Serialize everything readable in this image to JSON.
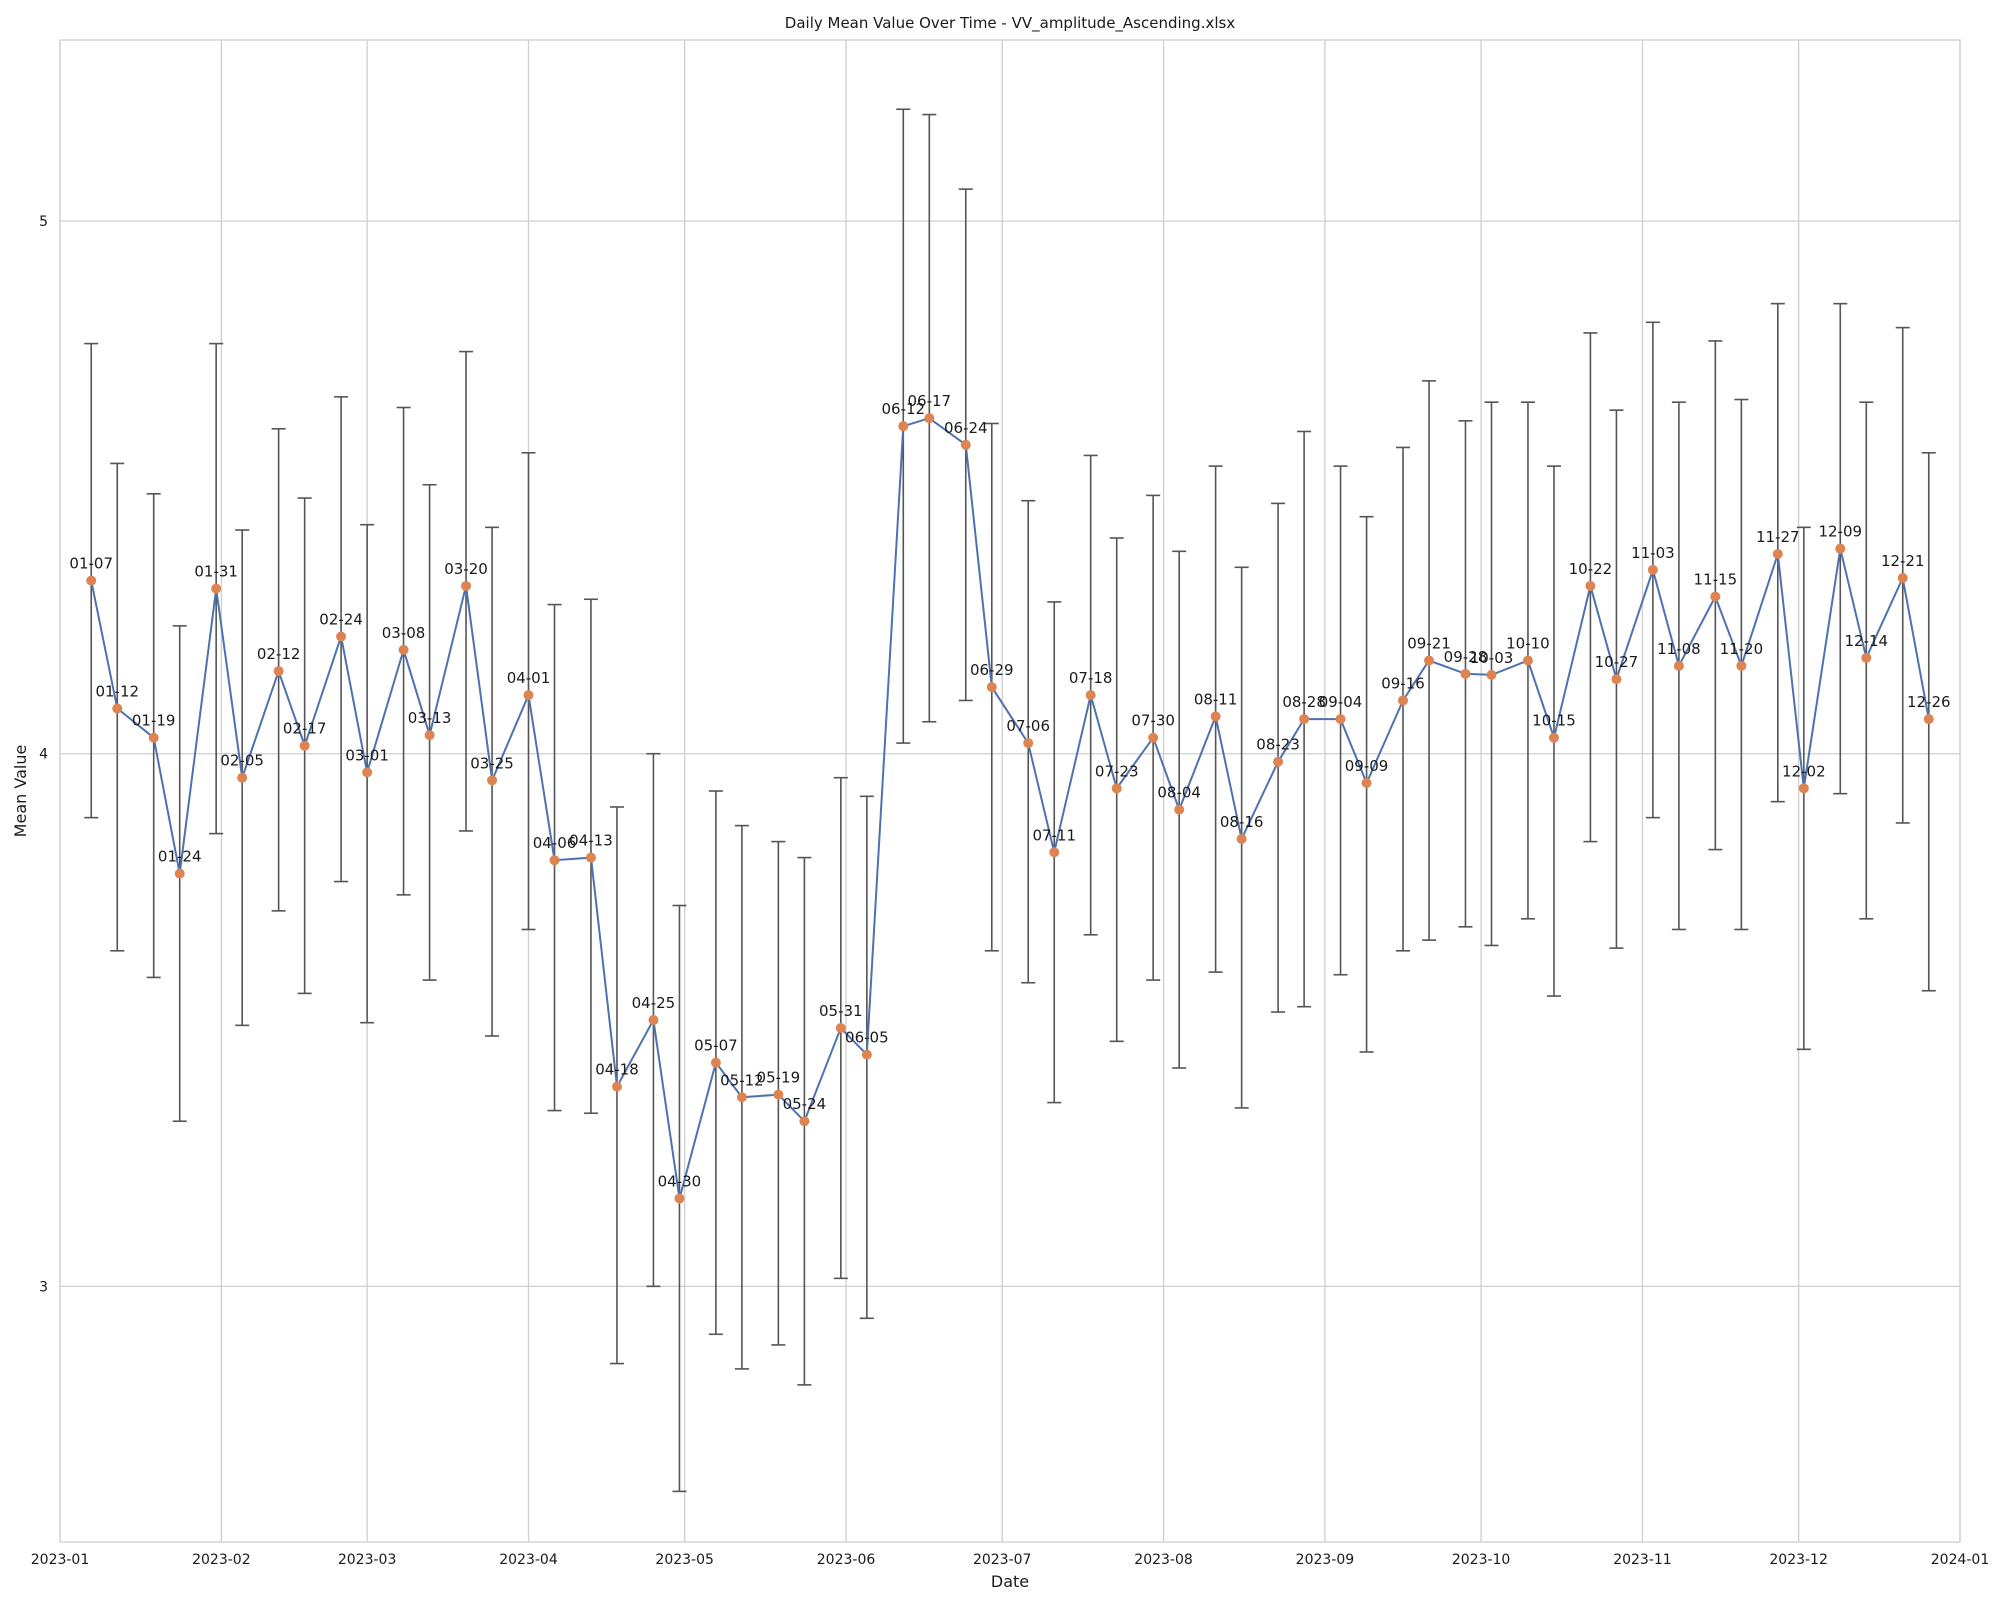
{
  "colors": {
    "line": "#4c72b0",
    "marker": "#dd8452",
    "errorbar": "#555555",
    "grid": "#cfcfcf"
  },
  "chart_data": {
    "type": "line",
    "title": "Daily Mean Value Over Time - VV_amplitude_Ascending.xlsx",
    "xlabel": "Date",
    "ylabel": "Mean Value",
    "xlim": [
      "2023-01-01",
      "2024-01-01"
    ],
    "ylim": [
      2.52,
      5.34
    ],
    "grid": true,
    "legend": "none",
    "x_ticks": [
      "2023-01",
      "2023-02",
      "2023-03",
      "2023-04",
      "2023-05",
      "2023-06",
      "2023-07",
      "2023-08",
      "2023-09",
      "2023-10",
      "2023-11",
      "2023-12",
      "2024-01"
    ],
    "y_ticks": [
      3,
      4,
      5
    ],
    "points": [
      {
        "date": "2023-01-07",
        "label": "01-07",
        "mean": 4.325,
        "err_low": 3.88,
        "err_high": 4.77
      },
      {
        "date": "2023-01-12",
        "label": "01-12",
        "mean": 4.085,
        "err_low": 3.63,
        "err_high": 4.545
      },
      {
        "date": "2023-01-19",
        "label": "01-19",
        "mean": 4.03,
        "err_low": 3.58,
        "err_high": 4.488
      },
      {
        "date": "2023-01-24",
        "label": "01-24",
        "mean": 3.775,
        "err_low": 3.31,
        "err_high": 4.24
      },
      {
        "date": "2023-01-31",
        "label": "01-31",
        "mean": 4.31,
        "err_low": 3.85,
        "err_high": 4.77
      },
      {
        "date": "2023-02-05",
        "label": "02-05",
        "mean": 3.955,
        "err_low": 3.49,
        "err_high": 4.42
      },
      {
        "date": "2023-02-12",
        "label": "02-12",
        "mean": 4.155,
        "err_low": 3.705,
        "err_high": 4.61
      },
      {
        "date": "2023-02-17",
        "label": "02-17",
        "mean": 4.015,
        "err_low": 3.55,
        "err_high": 4.48
      },
      {
        "date": "2023-02-24",
        "label": "02-24",
        "mean": 4.22,
        "err_low": 3.76,
        "err_high": 4.67
      },
      {
        "date": "2023-03-01",
        "label": "03-01",
        "mean": 3.965,
        "err_low": 3.495,
        "err_high": 4.43
      },
      {
        "date": "2023-03-08",
        "label": "03-08",
        "mean": 4.195,
        "err_low": 3.735,
        "err_high": 4.65
      },
      {
        "date": "2023-03-13",
        "label": "03-13",
        "mean": 4.035,
        "err_low": 3.575,
        "err_high": 4.505
      },
      {
        "date": "2023-03-20",
        "label": "03-20",
        "mean": 4.315,
        "err_low": 3.855,
        "err_high": 4.755
      },
      {
        "date": "2023-03-25",
        "label": "03-25",
        "mean": 3.95,
        "err_low": 3.47,
        "err_high": 4.425
      },
      {
        "date": "2023-04-01",
        "label": "04-01",
        "mean": 4.11,
        "err_low": 3.67,
        "err_high": 4.565
      },
      {
        "date": "2023-04-06",
        "label": "04-06",
        "mean": 3.8,
        "err_low": 3.33,
        "err_high": 4.28
      },
      {
        "date": "2023-04-13",
        "label": "04-13",
        "mean": 3.805,
        "err_low": 3.325,
        "err_high": 4.29
      },
      {
        "date": "2023-04-18",
        "label": "04-18",
        "mean": 3.375,
        "err_low": 2.855,
        "err_high": 3.9
      },
      {
        "date": "2023-04-25",
        "label": "04-25",
        "mean": 3.5,
        "err_low": 3.0,
        "err_high": 4.0
      },
      {
        "date": "2023-04-30",
        "label": "04-30",
        "mean": 3.165,
        "err_low": 2.615,
        "err_high": 3.715
      },
      {
        "date": "2023-05-07",
        "label": "05-07",
        "mean": 3.42,
        "err_low": 2.91,
        "err_high": 3.93
      },
      {
        "date": "2023-05-12",
        "label": "05-12",
        "mean": 3.355,
        "err_low": 2.845,
        "err_high": 3.865
      },
      {
        "date": "2023-05-19",
        "label": "05-19",
        "mean": 3.36,
        "err_low": 2.89,
        "err_high": 3.835
      },
      {
        "date": "2023-05-24",
        "label": "05-24",
        "mean": 3.31,
        "err_low": 2.815,
        "err_high": 3.805
      },
      {
        "date": "2023-05-31",
        "label": "05-31",
        "mean": 3.485,
        "err_low": 3.015,
        "err_high": 3.955
      },
      {
        "date": "2023-06-05",
        "label": "06-05",
        "mean": 3.435,
        "err_low": 2.94,
        "err_high": 3.92
      },
      {
        "date": "2023-06-12",
        "label": "06-12",
        "mean": 4.615,
        "err_low": 4.02,
        "err_high": 5.21
      },
      {
        "date": "2023-06-17",
        "label": "06-17",
        "mean": 4.63,
        "err_low": 4.06,
        "err_high": 5.2
      },
      {
        "date": "2023-06-24",
        "label": "06-24",
        "mean": 4.58,
        "err_low": 4.1,
        "err_high": 5.06
      },
      {
        "date": "2023-06-29",
        "label": "06-29",
        "mean": 4.125,
        "err_low": 3.63,
        "err_high": 4.62
      },
      {
        "date": "2023-07-06",
        "label": "07-06",
        "mean": 4.02,
        "err_low": 3.57,
        "err_high": 4.475
      },
      {
        "date": "2023-07-11",
        "label": "07-11",
        "mean": 3.815,
        "err_low": 3.345,
        "err_high": 4.285
      },
      {
        "date": "2023-07-18",
        "label": "07-18",
        "mean": 4.11,
        "err_low": 3.66,
        "err_high": 4.56
      },
      {
        "date": "2023-07-23",
        "label": "07-23",
        "mean": 3.935,
        "err_low": 3.46,
        "err_high": 4.405
      },
      {
        "date": "2023-07-30",
        "label": "07-30",
        "mean": 4.03,
        "err_low": 3.575,
        "err_high": 4.485
      },
      {
        "date": "2023-08-04",
        "label": "08-04",
        "mean": 3.895,
        "err_low": 3.41,
        "err_high": 4.38
      },
      {
        "date": "2023-08-11",
        "label": "08-11",
        "mean": 4.07,
        "err_low": 3.59,
        "err_high": 4.54
      },
      {
        "date": "2023-08-16",
        "label": "08-16",
        "mean": 3.84,
        "err_low": 3.335,
        "err_high": 4.35
      },
      {
        "date": "2023-08-23",
        "label": "08-23",
        "mean": 3.985,
        "err_low": 3.515,
        "err_high": 4.47
      },
      {
        "date": "2023-08-28",
        "label": "08-28",
        "mean": 4.065,
        "err_low": 3.525,
        "err_high": 4.605
      },
      {
        "date": "2023-09-04",
        "label": "09-04",
        "mean": 4.065,
        "err_low": 3.585,
        "err_high": 4.54
      },
      {
        "date": "2023-09-09",
        "label": "09-09",
        "mean": 3.945,
        "err_low": 3.44,
        "err_high": 4.445
      },
      {
        "date": "2023-09-16",
        "label": "09-16",
        "mean": 4.1,
        "err_low": 3.63,
        "err_high": 4.575
      },
      {
        "date": "2023-09-21",
        "label": "09-21",
        "mean": 4.175,
        "err_low": 3.65,
        "err_high": 4.7
      },
      {
        "date": "2023-09-28",
        "label": "09-28",
        "mean": 4.15,
        "err_low": 3.675,
        "err_high": 4.625
      },
      {
        "date": "2023-10-03",
        "label": "10-03",
        "mean": 4.148,
        "err_low": 3.64,
        "err_high": 4.66
      },
      {
        "date": "2023-10-10",
        "label": "10-10",
        "mean": 4.175,
        "err_low": 3.69,
        "err_high": 4.66
      },
      {
        "date": "2023-10-15",
        "label": "10-15",
        "mean": 4.03,
        "err_low": 3.545,
        "err_high": 4.54
      },
      {
        "date": "2023-10-22",
        "label": "10-22",
        "mean": 4.315,
        "err_low": 3.835,
        "err_high": 4.79
      },
      {
        "date": "2023-10-27",
        "label": "10-27",
        "mean": 4.14,
        "err_low": 3.635,
        "err_high": 4.645
      },
      {
        "date": "2023-11-03",
        "label": "11-03",
        "mean": 4.345,
        "err_low": 3.88,
        "err_high": 4.81
      },
      {
        "date": "2023-11-08",
        "label": "11-08",
        "mean": 4.165,
        "err_low": 3.67,
        "err_high": 4.66
      },
      {
        "date": "2023-11-15",
        "label": "11-15",
        "mean": 4.295,
        "err_low": 3.82,
        "err_high": 4.775
      },
      {
        "date": "2023-11-20",
        "label": "11-20",
        "mean": 4.165,
        "err_low": 3.67,
        "err_high": 4.665
      },
      {
        "date": "2023-11-27",
        "label": "11-27",
        "mean": 4.375,
        "err_low": 3.91,
        "err_high": 4.845
      },
      {
        "date": "2023-12-02",
        "label": "12-02",
        "mean": 3.935,
        "err_low": 3.445,
        "err_high": 4.425
      },
      {
        "date": "2023-12-09",
        "label": "12-09",
        "mean": 4.385,
        "err_low": 3.925,
        "err_high": 4.845
      },
      {
        "date": "2023-12-14",
        "label": "12-14",
        "mean": 4.18,
        "err_low": 3.69,
        "err_high": 4.66
      },
      {
        "date": "2023-12-21",
        "label": "12-21",
        "mean": 4.33,
        "err_low": 3.87,
        "err_high": 4.8
      },
      {
        "date": "2023-12-26",
        "label": "12-26",
        "mean": 4.065,
        "err_low": 3.555,
        "err_high": 4.565
      }
    ]
  }
}
